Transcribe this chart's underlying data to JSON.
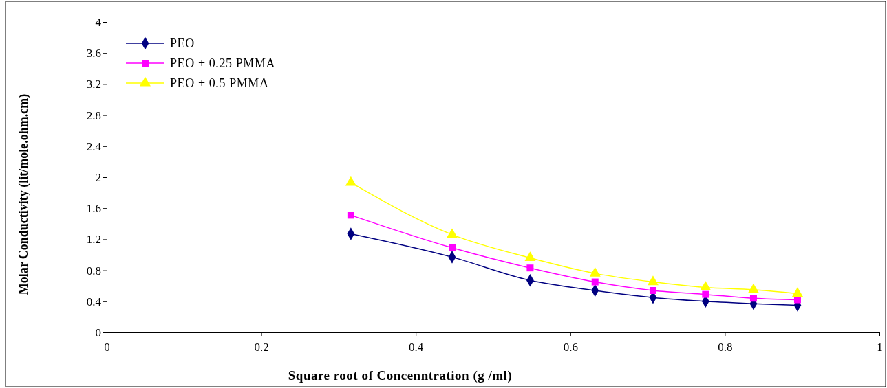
{
  "chart_data": {
    "type": "line",
    "xlabel": "Square root of Concenntration (g /ml)",
    "ylabel": "Molar Conductivity  (lit/mole.ohm.cm)",
    "x": [
      0.316,
      0.447,
      0.548,
      0.632,
      0.707,
      0.775,
      0.837,
      0.894
    ],
    "series": [
      {
        "name": "PEO",
        "color": "#000080",
        "marker": "diamond",
        "values": [
          1.27,
          0.97,
          0.67,
          0.54,
          0.45,
          0.4,
          0.37,
          0.35
        ]
      },
      {
        "name": "PEO + 0.25 PMMA",
        "color": "#ff00ff",
        "marker": "square",
        "values": [
          1.51,
          1.09,
          0.83,
          0.65,
          0.54,
          0.49,
          0.44,
          0.42
        ]
      },
      {
        "name": "PEO + 0.5 PMMA",
        "color": "#ffff00",
        "marker": "triangle",
        "values": [
          1.93,
          1.26,
          0.96,
          0.76,
          0.65,
          0.58,
          0.55,
          0.5
        ]
      }
    ],
    "xlim": [
      0,
      1
    ],
    "xticks": [
      0,
      0.2,
      0.4,
      0.6,
      0.8,
      1
    ],
    "ylim": [
      0,
      4
    ],
    "yticks": [
      0,
      0.4,
      0.8,
      1.2,
      1.6,
      2,
      2.4,
      2.8,
      3.2,
      3.6,
      4
    ],
    "grid": false,
    "legend": "top left",
    "line_style": "solid"
  }
}
